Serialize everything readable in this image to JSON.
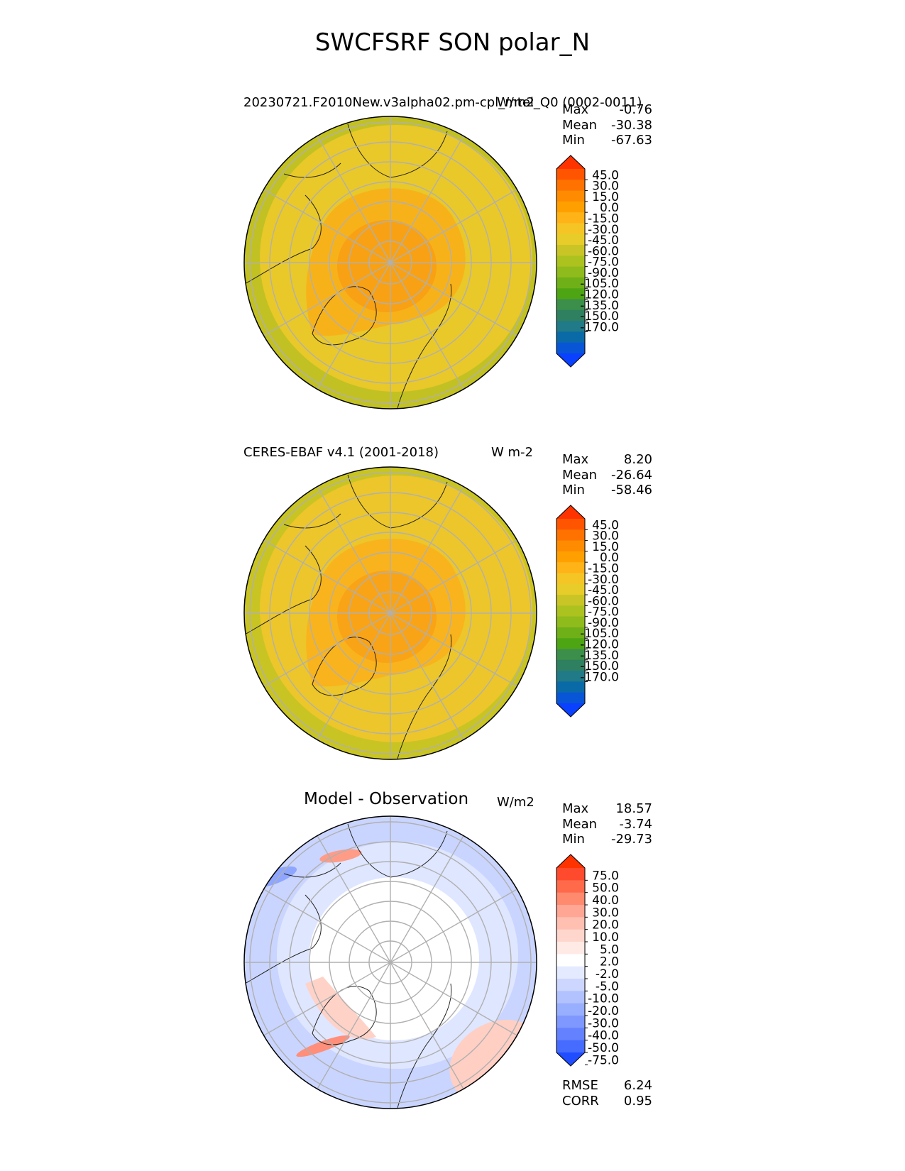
{
  "title": "SWCFSRF SON polar_N",
  "panels": [
    {
      "title": "20230721.F2010New.v3alpha02.pm-cpl_mtel_Q0 (0002-0011)",
      "units": "W/m2",
      "stats": [
        {
          "label": "Max",
          "value": "-0.76"
        },
        {
          "label": "Mean",
          "value": "-30.38"
        },
        {
          "label": "Min",
          "value": "-67.63"
        }
      ],
      "colorbar": {
        "ticks": [
          "45.0",
          "30.0",
          "15.0",
          "0.0",
          "-15.0",
          "-30.0",
          "-45.0",
          "-60.0",
          "-75.0",
          "-90.0",
          "-105.0",
          "-120.0",
          "-135.0",
          "-150.0",
          "-170.0"
        ],
        "colors": [
          "#ff3300",
          "#ff5500",
          "#ff7200",
          "#ff8c00",
          "#ffa000",
          "#ffb316",
          "#f5c526",
          "#e8cc2a",
          "#c9c526",
          "#acc21f",
          "#8fbb1c",
          "#6fb018",
          "#4ea514",
          "#3b8f4a",
          "#2f8060",
          "#207a88",
          "#0a6aa8",
          "#0855d8",
          "#0a40ff"
        ],
        "extend": "both"
      }
    },
    {
      "title": "CERES-EBAF v4.1 (2001-2018)",
      "units": "W m-2",
      "stats": [
        {
          "label": "Max",
          "value": "8.20"
        },
        {
          "label": "Mean",
          "value": "-26.64"
        },
        {
          "label": "Min",
          "value": "-58.46"
        }
      ],
      "colorbar": {
        "ticks": [
          "45.0",
          "30.0",
          "15.0",
          "0.0",
          "-15.0",
          "-30.0",
          "-45.0",
          "-60.0",
          "-75.0",
          "-90.0",
          "-105.0",
          "-120.0",
          "-135.0",
          "-150.0",
          "-170.0"
        ],
        "colors": [
          "#ff3300",
          "#ff5500",
          "#ff7200",
          "#ff8c00",
          "#ffa000",
          "#ffb316",
          "#f5c526",
          "#e8cc2a",
          "#c9c526",
          "#acc21f",
          "#8fbb1c",
          "#6fb018",
          "#4ea514",
          "#3b8f4a",
          "#2f8060",
          "#207a88",
          "#0a6aa8",
          "#0855d8",
          "#0a40ff"
        ],
        "extend": "both"
      }
    },
    {
      "title": "Model - Observation",
      "units": "W/m2",
      "stats": [
        {
          "label": "Max",
          "value": "18.57"
        },
        {
          "label": "Mean",
          "value": "-3.74"
        },
        {
          "label": "Min",
          "value": "-29.73"
        }
      ],
      "extra_stats": [
        {
          "label": "RMSE",
          "value": "6.24"
        },
        {
          "label": "CORR",
          "value": "0.95"
        }
      ],
      "colorbar": {
        "ticks": [
          "75.0",
          "50.0",
          "40.0",
          "30.0",
          "20.0",
          "10.0",
          "5.0",
          "2.0",
          "-2.0",
          "-5.0",
          "-10.0",
          "-20.0",
          "-30.0",
          "-40.0",
          "-50.0",
          "-75.0"
        ],
        "colors": [
          "#ff3300",
          "#ff4a2e",
          "#ff6a4a",
          "#ff8a6e",
          "#ffa694",
          "#ffc0b2",
          "#ffd6cc",
          "#ffeae6",
          "#ffffff",
          "#e4eaff",
          "#ccd6ff",
          "#b2c2ff",
          "#98aeff",
          "#7e98ff",
          "#6482ff",
          "#466cff",
          "#1f4dff"
        ],
        "extend": "both"
      }
    }
  ],
  "chart_data": [
    {
      "type": "heatmap",
      "projection": "north-polar-stereographic",
      "title": "20230721.F2010New.v3alpha02.pm-cpl_mtel_Q0 (0002-0011)",
      "units": "W/m2",
      "stats": {
        "max": -0.76,
        "mean": -30.38,
        "min": -67.63
      },
      "levels": [
        -170,
        -150,
        -135,
        -120,
        -105,
        -90,
        -75,
        -60,
        -45,
        -30,
        -15,
        0,
        15,
        30,
        45
      ],
      "field_description_by_latitude": [
        {
          "lat_band": [
            80,
            90
          ],
          "approx_value": -20
        },
        {
          "lat_band": [
            65,
            80
          ],
          "approx_value": -30
        },
        {
          "lat_band": [
            55,
            65
          ],
          "approx_value": -40
        },
        {
          "lat_band": [
            45,
            55
          ],
          "approx_value": -50
        }
      ]
    },
    {
      "type": "heatmap",
      "projection": "north-polar-stereographic",
      "title": "CERES-EBAF v4.1 (2001-2018)",
      "units": "W m-2",
      "stats": {
        "max": 8.2,
        "mean": -26.64,
        "min": -58.46
      },
      "levels": [
        -170,
        -150,
        -135,
        -120,
        -105,
        -90,
        -75,
        -60,
        -45,
        -30,
        -15,
        0,
        15,
        30,
        45
      ]
    },
    {
      "type": "heatmap",
      "projection": "north-polar-stereographic",
      "title": "Model - Observation",
      "units": "W/m2",
      "stats": {
        "max": 18.57,
        "mean": -3.74,
        "min": -29.73,
        "rmse": 6.24,
        "corr": 0.95
      },
      "levels": [
        -75,
        -50,
        -40,
        -30,
        -20,
        -10,
        -5,
        -2,
        2,
        5,
        10,
        20,
        30,
        40,
        50,
        75
      ]
    }
  ]
}
